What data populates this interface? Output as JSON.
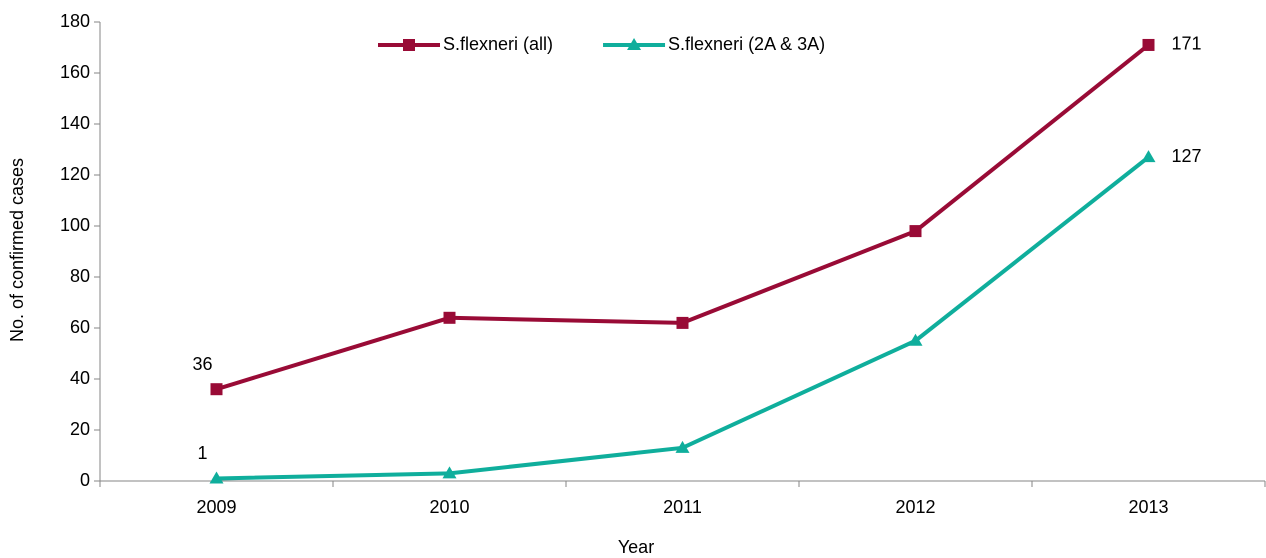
{
  "chart_data": {
    "type": "line",
    "x_label": "Year",
    "y_label": "No. of confirmed cases",
    "categories": [
      "2009",
      "2010",
      "2011",
      "2012",
      "2013"
    ],
    "series": [
      {
        "name": "S.flexneri (all)",
        "color": "#990b36",
        "marker": "square",
        "values": [
          36,
          64,
          62,
          98,
          171
        ],
        "value_labels": [
          "36",
          null,
          null,
          null,
          "171"
        ]
      },
      {
        "name": "S.flexneri (2A & 3A)",
        "color": "#0fae9c",
        "marker": "triangle",
        "values": [
          1,
          3,
          13,
          55,
          127
        ],
        "value_labels": [
          "1",
          null,
          null,
          null,
          "127"
        ]
      }
    ],
    "ylim": [
      0,
      180
    ],
    "yticks": [
      0,
      20,
      40,
      60,
      80,
      100,
      120,
      140,
      160,
      180
    ],
    "grid": false,
    "legend": "top"
  }
}
